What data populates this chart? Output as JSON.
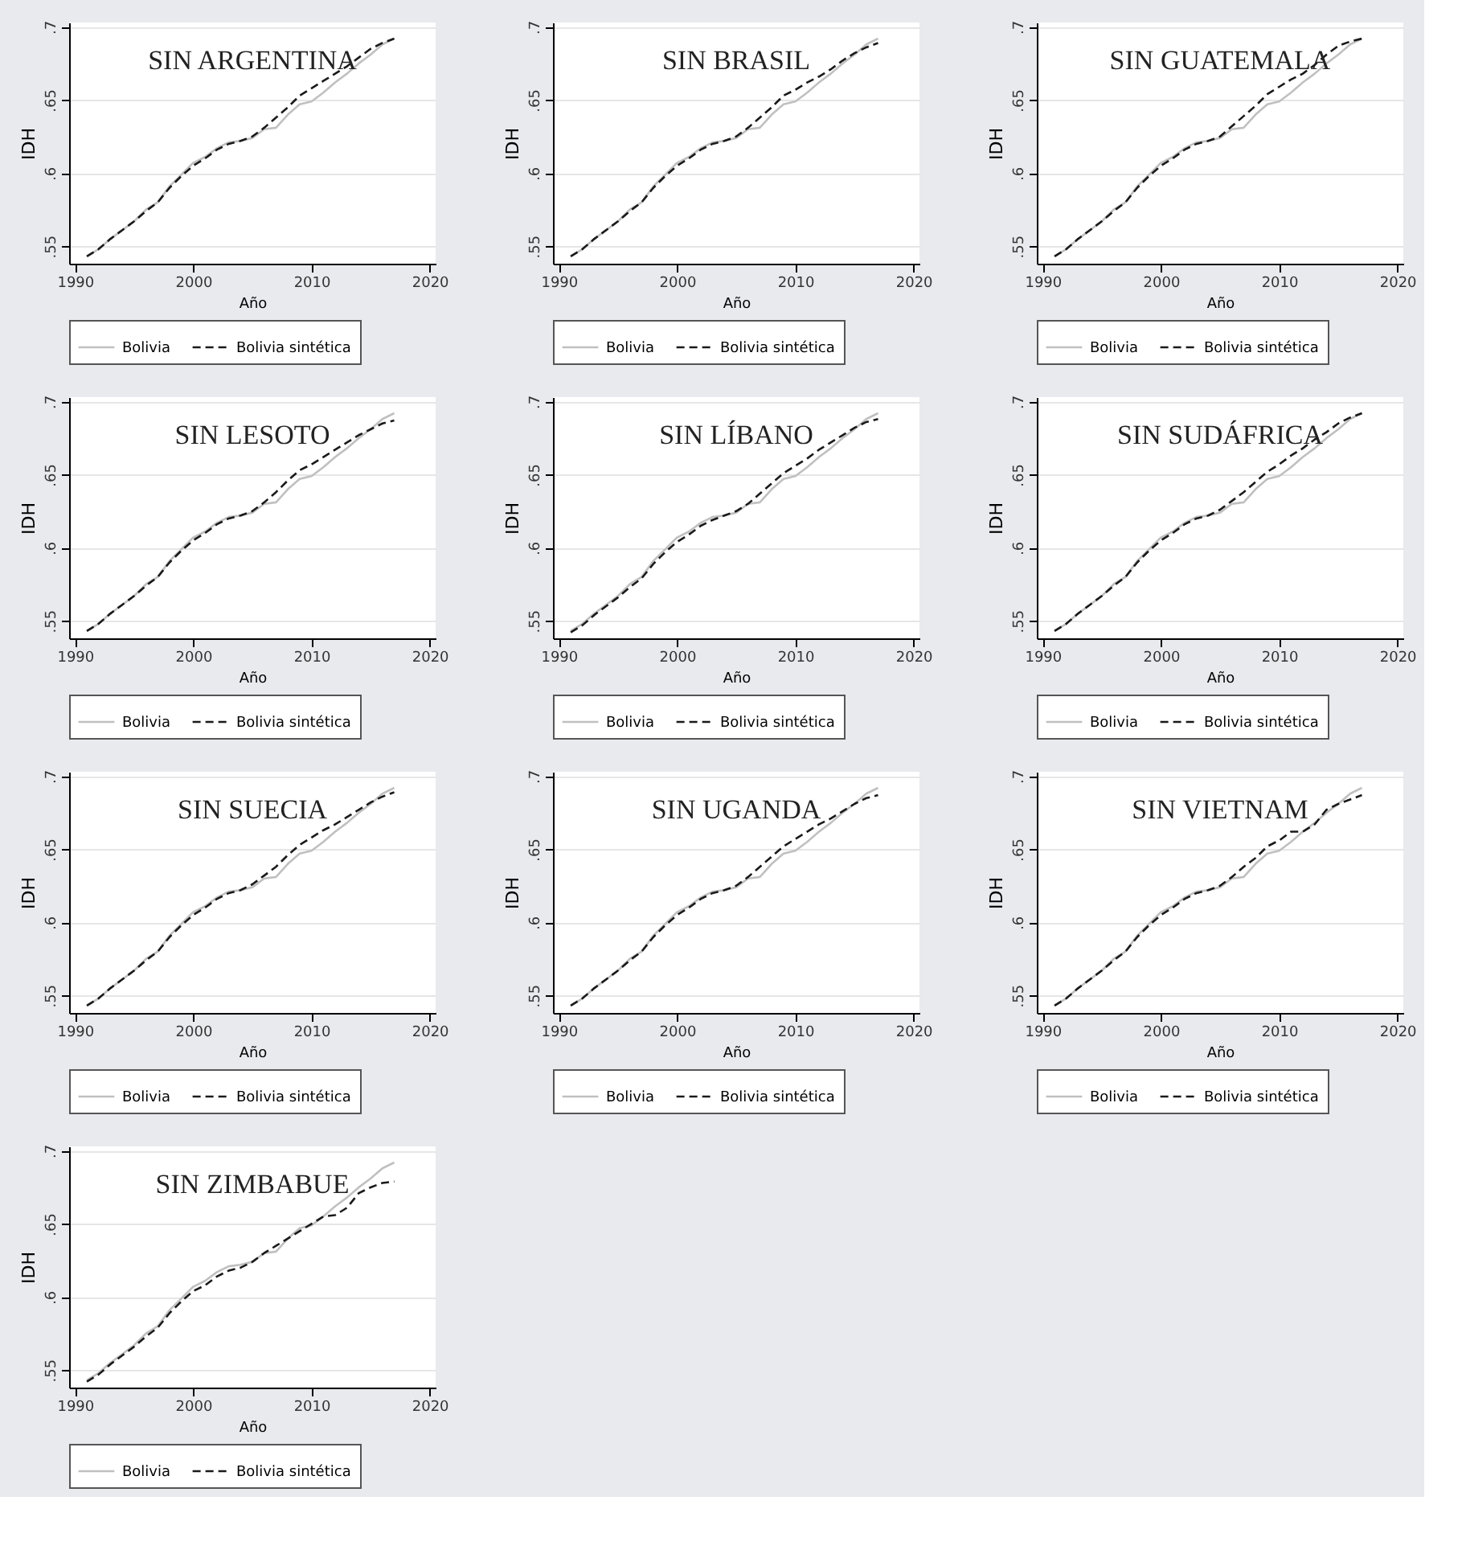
{
  "chart_data": [
    {
      "type": "line",
      "title": "SIN ARGENTINA",
      "xlabel": "Año",
      "ylabel": "IDH",
      "xlim": [
        1989.5,
        2020.5
      ],
      "xticks": [
        1990,
        2000,
        2010,
        2020
      ],
      "ylim": [
        0.538,
        0.703
      ],
      "yticks": [
        {
          "value": 0.55,
          "label": ".55"
        },
        {
          "value": 0.6,
          "label": ".6"
        },
        {
          "value": 0.65,
          "label": ".65"
        },
        {
          "value": 0.7,
          "label": ".7"
        }
      ],
      "grid": "y",
      "legend": "bottom",
      "x": [
        1991,
        1992,
        1993,
        1994,
        1995,
        1996,
        1997,
        1998,
        1999,
        2000,
        2001,
        2002,
        2003,
        2004,
        2005,
        2006,
        2007,
        2008,
        2009,
        2010,
        2011,
        2012,
        2013,
        2014,
        2015,
        2016,
        2017
      ],
      "series": [
        {
          "name": "Bolivia",
          "color": "#c0c0c0",
          "line_style": "solid",
          "values": [
            0.543,
            0.548,
            0.555,
            0.561,
            0.567,
            0.575,
            0.58,
            0.591,
            0.599,
            0.607,
            0.611,
            0.617,
            0.621,
            0.622,
            0.624,
            0.63,
            0.631,
            0.64,
            0.647,
            0.649,
            0.655,
            0.662,
            0.668,
            0.675,
            0.681,
            0.688,
            0.692
          ]
        },
        {
          "name": "Bolivia sintética",
          "color": "#1a1a1a",
          "line_style": "dashed",
          "values": [
            0.543,
            0.548,
            0.555,
            0.561,
            0.567,
            0.574,
            0.58,
            0.59,
            0.598,
            0.605,
            0.61,
            0.616,
            0.62,
            0.622,
            0.625,
            0.631,
            0.638,
            0.645,
            0.653,
            0.658,
            0.663,
            0.668,
            0.673,
            0.679,
            0.685,
            0.689,
            0.692
          ]
        }
      ]
    },
    {
      "type": "line",
      "title": "SIN BRASIL",
      "xlabel": "Año",
      "ylabel": "IDH",
      "xlim": [
        1989.5,
        2020.5
      ],
      "xticks": [
        1990,
        2000,
        2010,
        2020
      ],
      "ylim": [
        0.538,
        0.703
      ],
      "yticks": [
        {
          "value": 0.55,
          "label": ".55"
        },
        {
          "value": 0.6,
          "label": ".6"
        },
        {
          "value": 0.65,
          "label": ".65"
        },
        {
          "value": 0.7,
          "label": ".7"
        }
      ],
      "grid": "y",
      "legend": "bottom",
      "x": [
        1991,
        1992,
        1993,
        1994,
        1995,
        1996,
        1997,
        1998,
        1999,
        2000,
        2001,
        2002,
        2003,
        2004,
        2005,
        2006,
        2007,
        2008,
        2009,
        2010,
        2011,
        2012,
        2013,
        2014,
        2015,
        2016,
        2017
      ],
      "series": [
        {
          "name": "Bolivia",
          "color": "#c0c0c0",
          "line_style": "solid",
          "values": [
            0.543,
            0.548,
            0.555,
            0.561,
            0.567,
            0.575,
            0.58,
            0.591,
            0.599,
            0.607,
            0.611,
            0.617,
            0.621,
            0.622,
            0.624,
            0.63,
            0.631,
            0.64,
            0.647,
            0.649,
            0.655,
            0.662,
            0.668,
            0.675,
            0.681,
            0.688,
            0.692
          ]
        },
        {
          "name": "Bolivia sintética",
          "color": "#1a1a1a",
          "line_style": "dashed",
          "values": [
            0.543,
            0.548,
            0.555,
            0.561,
            0.567,
            0.574,
            0.58,
            0.59,
            0.598,
            0.605,
            0.61,
            0.616,
            0.62,
            0.622,
            0.625,
            0.631,
            0.638,
            0.645,
            0.653,
            0.657,
            0.662,
            0.666,
            0.671,
            0.677,
            0.682,
            0.686,
            0.689
          ]
        }
      ]
    },
    {
      "type": "line",
      "title": "SIN GUATEMALA",
      "xlabel": "Año",
      "ylabel": "IDH",
      "xlim": [
        1989.5,
        2020.5
      ],
      "xticks": [
        1990,
        2000,
        2010,
        2020
      ],
      "ylim": [
        0.538,
        0.703
      ],
      "yticks": [
        {
          "value": 0.55,
          "label": ".55"
        },
        {
          "value": 0.6,
          "label": ".6"
        },
        {
          "value": 0.65,
          "label": ".65"
        },
        {
          "value": 0.7,
          "label": ".7"
        }
      ],
      "grid": "y",
      "legend": "bottom",
      "x": [
        1991,
        1992,
        1993,
        1994,
        1995,
        1996,
        1997,
        1998,
        1999,
        2000,
        2001,
        2002,
        2003,
        2004,
        2005,
        2006,
        2007,
        2008,
        2009,
        2010,
        2011,
        2012,
        2013,
        2014,
        2015,
        2016,
        2017
      ],
      "series": [
        {
          "name": "Bolivia",
          "color": "#c0c0c0",
          "line_style": "solid",
          "values": [
            0.543,
            0.548,
            0.555,
            0.561,
            0.567,
            0.575,
            0.58,
            0.591,
            0.599,
            0.607,
            0.611,
            0.617,
            0.621,
            0.622,
            0.624,
            0.63,
            0.631,
            0.64,
            0.647,
            0.649,
            0.655,
            0.662,
            0.668,
            0.675,
            0.681,
            0.688,
            0.692
          ]
        },
        {
          "name": "Bolivia sintética",
          "color": "#1a1a1a",
          "line_style": "dashed",
          "values": [
            0.543,
            0.548,
            0.555,
            0.561,
            0.567,
            0.574,
            0.58,
            0.59,
            0.598,
            0.605,
            0.61,
            0.616,
            0.62,
            0.622,
            0.625,
            0.632,
            0.639,
            0.646,
            0.654,
            0.659,
            0.664,
            0.668,
            0.674,
            0.681,
            0.687,
            0.69,
            0.692
          ]
        }
      ]
    },
    {
      "type": "line",
      "title": "SIN LESOTO",
      "xlabel": "Año",
      "ylabel": "IDH",
      "xlim": [
        1989.5,
        2020.5
      ],
      "xticks": [
        1990,
        2000,
        2010,
        2020
      ],
      "ylim": [
        0.538,
        0.703
      ],
      "yticks": [
        {
          "value": 0.55,
          "label": ".55"
        },
        {
          "value": 0.6,
          "label": ".6"
        },
        {
          "value": 0.65,
          "label": ".65"
        },
        {
          "value": 0.7,
          "label": ".7"
        }
      ],
      "grid": "y",
      "legend": "bottom",
      "x": [
        1991,
        1992,
        1993,
        1994,
        1995,
        1996,
        1997,
        1998,
        1999,
        2000,
        2001,
        2002,
        2003,
        2004,
        2005,
        2006,
        2007,
        2008,
        2009,
        2010,
        2011,
        2012,
        2013,
        2014,
        2015,
        2016,
        2017
      ],
      "series": [
        {
          "name": "Bolivia",
          "color": "#c0c0c0",
          "line_style": "solid",
          "values": [
            0.543,
            0.548,
            0.555,
            0.561,
            0.567,
            0.575,
            0.58,
            0.591,
            0.599,
            0.607,
            0.611,
            0.617,
            0.621,
            0.622,
            0.624,
            0.63,
            0.631,
            0.64,
            0.647,
            0.649,
            0.655,
            0.662,
            0.668,
            0.675,
            0.681,
            0.688,
            0.692
          ]
        },
        {
          "name": "Bolivia sintética",
          "color": "#1a1a1a",
          "line_style": "dashed",
          "values": [
            0.543,
            0.548,
            0.555,
            0.561,
            0.567,
            0.574,
            0.58,
            0.59,
            0.598,
            0.605,
            0.61,
            0.616,
            0.62,
            0.622,
            0.625,
            0.631,
            0.638,
            0.646,
            0.653,
            0.657,
            0.662,
            0.667,
            0.672,
            0.677,
            0.681,
            0.685,
            0.687
          ]
        }
      ]
    },
    {
      "type": "line",
      "title": "SIN LÍBANO",
      "xlabel": "Año",
      "ylabel": "IDH",
      "xlim": [
        1989.5,
        2020.5
      ],
      "xticks": [
        1990,
        2000,
        2010,
        2020
      ],
      "ylim": [
        0.538,
        0.703
      ],
      "yticks": [
        {
          "value": 0.55,
          "label": ".55"
        },
        {
          "value": 0.6,
          "label": ".6"
        },
        {
          "value": 0.65,
          "label": ".65"
        },
        {
          "value": 0.7,
          "label": ".7"
        }
      ],
      "grid": "y",
      "legend": "bottom",
      "x": [
        1991,
        1992,
        1993,
        1994,
        1995,
        1996,
        1997,
        1998,
        1999,
        2000,
        2001,
        2002,
        2003,
        2004,
        2005,
        2006,
        2007,
        2008,
        2009,
        2010,
        2011,
        2012,
        2013,
        2014,
        2015,
        2016,
        2017
      ],
      "series": [
        {
          "name": "Bolivia",
          "color": "#c0c0c0",
          "line_style": "solid",
          "values": [
            0.543,
            0.548,
            0.555,
            0.561,
            0.567,
            0.575,
            0.58,
            0.591,
            0.599,
            0.607,
            0.611,
            0.617,
            0.621,
            0.622,
            0.624,
            0.63,
            0.631,
            0.64,
            0.647,
            0.649,
            0.655,
            0.662,
            0.668,
            0.675,
            0.681,
            0.688,
            0.692
          ]
        },
        {
          "name": "Bolivia sintética",
          "color": "#1a1a1a",
          "line_style": "dashed",
          "values": [
            0.542,
            0.547,
            0.554,
            0.56,
            0.566,
            0.573,
            0.579,
            0.589,
            0.597,
            0.604,
            0.609,
            0.615,
            0.619,
            0.622,
            0.625,
            0.63,
            0.637,
            0.644,
            0.651,
            0.656,
            0.661,
            0.667,
            0.672,
            0.677,
            0.682,
            0.686,
            0.688
          ]
        }
      ]
    },
    {
      "type": "line",
      "title": "SIN SUDÁFRICA",
      "xlabel": "Año",
      "ylabel": "IDH",
      "xlim": [
        1989.5,
        2020.5
      ],
      "xticks": [
        1990,
        2000,
        2010,
        2020
      ],
      "ylim": [
        0.538,
        0.703
      ],
      "yticks": [
        {
          "value": 0.55,
          "label": ".55"
        },
        {
          "value": 0.6,
          "label": ".6"
        },
        {
          "value": 0.65,
          "label": ".65"
        },
        {
          "value": 0.7,
          "label": ".7"
        }
      ],
      "grid": "y",
      "legend": "bottom",
      "x": [
        1991,
        1992,
        1993,
        1994,
        1995,
        1996,
        1997,
        1998,
        1999,
        2000,
        2001,
        2002,
        2003,
        2004,
        2005,
        2006,
        2007,
        2008,
        2009,
        2010,
        2011,
        2012,
        2013,
        2014,
        2015,
        2016,
        2017
      ],
      "series": [
        {
          "name": "Bolivia",
          "color": "#c0c0c0",
          "line_style": "solid",
          "values": [
            0.543,
            0.548,
            0.555,
            0.561,
            0.567,
            0.575,
            0.58,
            0.591,
            0.599,
            0.607,
            0.611,
            0.617,
            0.621,
            0.622,
            0.624,
            0.63,
            0.631,
            0.64,
            0.647,
            0.649,
            0.655,
            0.662,
            0.668,
            0.675,
            0.681,
            0.688,
            0.692
          ]
        },
        {
          "name": "Bolivia sintética",
          "color": "#1a1a1a",
          "line_style": "dashed",
          "values": [
            0.543,
            0.548,
            0.555,
            0.561,
            0.567,
            0.574,
            0.58,
            0.59,
            0.598,
            0.605,
            0.61,
            0.616,
            0.62,
            0.622,
            0.626,
            0.632,
            0.638,
            0.645,
            0.652,
            0.657,
            0.663,
            0.668,
            0.674,
            0.679,
            0.685,
            0.689,
            0.692
          ]
        }
      ]
    },
    {
      "type": "line",
      "title": "SIN SUECIA",
      "xlabel": "Año",
      "ylabel": "IDH",
      "xlim": [
        1989.5,
        2020.5
      ],
      "xticks": [
        1990,
        2000,
        2010,
        2020
      ],
      "ylim": [
        0.538,
        0.703
      ],
      "yticks": [
        {
          "value": 0.55,
          "label": ".55"
        },
        {
          "value": 0.6,
          "label": ".6"
        },
        {
          "value": 0.65,
          "label": ".65"
        },
        {
          "value": 0.7,
          "label": ".7"
        }
      ],
      "grid": "y",
      "legend": "bottom",
      "x": [
        1991,
        1992,
        1993,
        1994,
        1995,
        1996,
        1997,
        1998,
        1999,
        2000,
        2001,
        2002,
        2003,
        2004,
        2005,
        2006,
        2007,
        2008,
        2009,
        2010,
        2011,
        2012,
        2013,
        2014,
        2015,
        2016,
        2017
      ],
      "series": [
        {
          "name": "Bolivia",
          "color": "#c0c0c0",
          "line_style": "solid",
          "values": [
            0.543,
            0.548,
            0.555,
            0.561,
            0.567,
            0.575,
            0.58,
            0.591,
            0.599,
            0.607,
            0.611,
            0.617,
            0.621,
            0.622,
            0.624,
            0.63,
            0.631,
            0.64,
            0.647,
            0.649,
            0.655,
            0.662,
            0.668,
            0.675,
            0.681,
            0.688,
            0.692
          ]
        },
        {
          "name": "Bolivia sintética",
          "color": "#1a1a1a",
          "line_style": "dashed",
          "values": [
            0.543,
            0.548,
            0.555,
            0.561,
            0.567,
            0.574,
            0.58,
            0.59,
            0.598,
            0.605,
            0.61,
            0.616,
            0.62,
            0.622,
            0.626,
            0.632,
            0.638,
            0.646,
            0.653,
            0.658,
            0.663,
            0.667,
            0.672,
            0.677,
            0.682,
            0.686,
            0.689
          ]
        }
      ]
    },
    {
      "type": "line",
      "title": "SIN UGANDA",
      "xlabel": "Año",
      "ylabel": "IDH",
      "xlim": [
        1989.5,
        2020.5
      ],
      "xticks": [
        1990,
        2000,
        2010,
        2020
      ],
      "ylim": [
        0.538,
        0.703
      ],
      "yticks": [
        {
          "value": 0.55,
          "label": ".55"
        },
        {
          "value": 0.6,
          "label": ".6"
        },
        {
          "value": 0.65,
          "label": ".65"
        },
        {
          "value": 0.7,
          "label": ".7"
        }
      ],
      "grid": "y",
      "legend": "bottom",
      "x": [
        1991,
        1992,
        1993,
        1994,
        1995,
        1996,
        1997,
        1998,
        1999,
        2000,
        2001,
        2002,
        2003,
        2004,
        2005,
        2006,
        2007,
        2008,
        2009,
        2010,
        2011,
        2012,
        2013,
        2014,
        2015,
        2016,
        2017
      ],
      "series": [
        {
          "name": "Bolivia",
          "color": "#c0c0c0",
          "line_style": "solid",
          "values": [
            0.543,
            0.548,
            0.555,
            0.561,
            0.567,
            0.575,
            0.58,
            0.591,
            0.599,
            0.607,
            0.611,
            0.617,
            0.621,
            0.622,
            0.624,
            0.63,
            0.631,
            0.64,
            0.647,
            0.649,
            0.655,
            0.662,
            0.668,
            0.675,
            0.681,
            0.688,
            0.692
          ]
        },
        {
          "name": "Bolivia sintética",
          "color": "#1a1a1a",
          "line_style": "dashed",
          "values": [
            0.543,
            0.548,
            0.555,
            0.561,
            0.567,
            0.574,
            0.58,
            0.59,
            0.598,
            0.605,
            0.61,
            0.616,
            0.62,
            0.622,
            0.625,
            0.631,
            0.638,
            0.645,
            0.652,
            0.657,
            0.662,
            0.667,
            0.671,
            0.676,
            0.681,
            0.685,
            0.687
          ]
        }
      ]
    },
    {
      "type": "line",
      "title": "SIN VIETNAM",
      "xlabel": "Año",
      "ylabel": "IDH",
      "xlim": [
        1989.5,
        2020.5
      ],
      "xticks": [
        1990,
        2000,
        2010,
        2020
      ],
      "ylim": [
        0.538,
        0.703
      ],
      "yticks": [
        {
          "value": 0.55,
          "label": ".55"
        },
        {
          "value": 0.6,
          "label": ".6"
        },
        {
          "value": 0.65,
          "label": ".65"
        },
        {
          "value": 0.7,
          "label": ".7"
        }
      ],
      "grid": "y",
      "legend": "bottom",
      "x": [
        1991,
        1992,
        1993,
        1994,
        1995,
        1996,
        1997,
        1998,
        1999,
        2000,
        2001,
        2002,
        2003,
        2004,
        2005,
        2006,
        2007,
        2008,
        2009,
        2010,
        2011,
        2012,
        2013,
        2014,
        2015,
        2016,
        2017
      ],
      "series": [
        {
          "name": "Bolivia",
          "color": "#c0c0c0",
          "line_style": "solid",
          "values": [
            0.543,
            0.548,
            0.555,
            0.561,
            0.567,
            0.575,
            0.58,
            0.591,
            0.599,
            0.607,
            0.611,
            0.617,
            0.621,
            0.622,
            0.624,
            0.63,
            0.631,
            0.64,
            0.647,
            0.649,
            0.655,
            0.662,
            0.668,
            0.675,
            0.681,
            0.688,
            0.692
          ]
        },
        {
          "name": "Bolivia sintética",
          "color": "#1a1a1a",
          "line_style": "dashed",
          "values": [
            0.543,
            0.548,
            0.555,
            0.561,
            0.567,
            0.574,
            0.58,
            0.59,
            0.598,
            0.605,
            0.61,
            0.616,
            0.62,
            0.622,
            0.625,
            0.631,
            0.638,
            0.644,
            0.652,
            0.656,
            0.662,
            0.662,
            0.667,
            0.677,
            0.681,
            0.684,
            0.687
          ]
        }
      ]
    },
    {
      "type": "line",
      "title": "SIN ZIMBABUE",
      "xlabel": "Año",
      "ylabel": "IDH",
      "xlim": [
        1989.5,
        2020.5
      ],
      "xticks": [
        1990,
        2000,
        2010,
        2020
      ],
      "ylim": [
        0.538,
        0.703
      ],
      "yticks": [
        {
          "value": 0.55,
          "label": ".55"
        },
        {
          "value": 0.6,
          "label": ".6"
        },
        {
          "value": 0.65,
          "label": ".65"
        },
        {
          "value": 0.7,
          "label": ".7"
        }
      ],
      "grid": "y",
      "legend": "bottom",
      "x": [
        1991,
        1992,
        1993,
        1994,
        1995,
        1996,
        1997,
        1998,
        1999,
        2000,
        2001,
        2002,
        2003,
        2004,
        2005,
        2006,
        2007,
        2008,
        2009,
        2010,
        2011,
        2012,
        2013,
        2014,
        2015,
        2016,
        2017
      ],
      "series": [
        {
          "name": "Bolivia",
          "color": "#c0c0c0",
          "line_style": "solid",
          "values": [
            0.543,
            0.548,
            0.555,
            0.561,
            0.567,
            0.575,
            0.58,
            0.591,
            0.599,
            0.607,
            0.611,
            0.617,
            0.621,
            0.622,
            0.624,
            0.63,
            0.631,
            0.64,
            0.647,
            0.649,
            0.655,
            0.662,
            0.668,
            0.675,
            0.681,
            0.688,
            0.692
          ]
        },
        {
          "name": "Bolivia sintética",
          "color": "#1a1a1a",
          "line_style": "dashed",
          "values": [
            0.542,
            0.547,
            0.554,
            0.56,
            0.566,
            0.573,
            0.579,
            0.589,
            0.597,
            0.604,
            0.608,
            0.614,
            0.618,
            0.62,
            0.624,
            0.63,
            0.635,
            0.64,
            0.645,
            0.65,
            0.655,
            0.656,
            0.661,
            0.671,
            0.675,
            0.678,
            0.679
          ]
        }
      ]
    }
  ]
}
